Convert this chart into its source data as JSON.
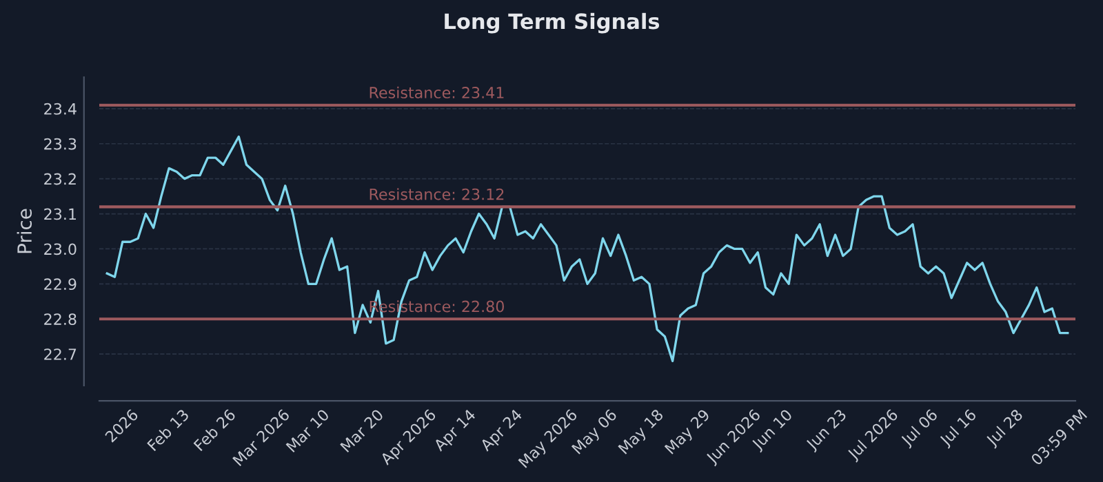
{
  "chart_data": {
    "type": "line",
    "title": "Long Term Signals",
    "ylabel": "Price",
    "categories": [
      null,
      null,
      "2026",
      null,
      null,
      null,
      null,
      null,
      "Feb 13",
      null,
      null,
      null,
      null,
      null,
      "Feb 26",
      null,
      null,
      null,
      null,
      null,
      "Mar 2026",
      null,
      null,
      null,
      null,
      null,
      "Mar 10",
      null,
      null,
      null,
      null,
      null,
      null,
      "Mar 20",
      null,
      null,
      null,
      null,
      null,
      "Apr 2026",
      null,
      null,
      null,
      null,
      null,
      "Apr 14",
      null,
      null,
      null,
      null,
      null,
      "Apr 24",
      null,
      null,
      null,
      null,
      null,
      "May 2026",
      null,
      null,
      null,
      null,
      null,
      "May 06",
      null,
      null,
      null,
      null,
      null,
      "May 18",
      null,
      null,
      null,
      null,
      null,
      "May 29",
      null,
      null,
      null,
      null,
      null,
      "Jun 2026",
      null,
      null,
      null,
      null,
      "Jun 10",
      null,
      null,
      null,
      null,
      null,
      null,
      "Jun 23",
      null,
      null,
      null,
      null,
      null,
      "Jul 2026",
      null,
      null,
      null,
      null,
      null,
      "Jul 06",
      null,
      null,
      null,
      null,
      "Jul 16",
      null,
      null,
      null,
      null,
      null,
      "Jul 28",
      null,
      null,
      null,
      null,
      null,
      null,
      "03:59 PM",
      null
    ],
    "series": [
      {
        "color": "#7fd6ec",
        "values": [
          22.93,
          22.92,
          23.02,
          23.02,
          23.03,
          23.1,
          23.06,
          23.15,
          23.23,
          23.22,
          23.2,
          23.21,
          23.21,
          23.26,
          23.26,
          23.24,
          23.28,
          23.32,
          23.24,
          23.22,
          23.2,
          23.14,
          23.11,
          23.18,
          23.1,
          22.99,
          22.9,
          22.9,
          22.97,
          23.03,
          22.94,
          22.95,
          22.76,
          22.84,
          22.79,
          22.88,
          22.73,
          22.74,
          22.85,
          22.91,
          22.92,
          22.99,
          22.94,
          22.98,
          23.01,
          23.03,
          22.99,
          23.05,
          23.1,
          23.07,
          23.03,
          23.12,
          23.12,
          23.04,
          23.05,
          23.03,
          23.07,
          23.04,
          23.01,
          22.91,
          22.95,
          22.97,
          22.9,
          22.93,
          23.03,
          22.98,
          23.04,
          22.98,
          22.91,
          22.92,
          22.9,
          22.77,
          22.75,
          22.68,
          22.81,
          22.83,
          22.84,
          22.93,
          22.95,
          22.99,
          23.01,
          23.0,
          23.0,
          22.96,
          22.99,
          22.89,
          22.87,
          22.93,
          22.9,
          23.04,
          23.01,
          23.03,
          23.07,
          22.98,
          23.04,
          22.98,
          23.0,
          23.12,
          23.14,
          23.15,
          23.15,
          23.06,
          23.04,
          23.05,
          23.07,
          22.95,
          22.93,
          22.95,
          22.93,
          22.86,
          22.91,
          22.96,
          22.94,
          22.96,
          22.9,
          22.85,
          22.82,
          22.76,
          22.8,
          22.84,
          22.89,
          22.82,
          22.83,
          22.76,
          22.76
        ]
      }
    ],
    "ylim": [
      22.61,
      23.49
    ],
    "yticks": [
      22.7,
      22.8,
      22.9,
      {
        "value": 23,
        "label": "23.0"
      },
      23.1,
      23.2,
      23.3,
      23.4
    ],
    "grid": "y",
    "ref_lines": [
      {
        "axis": "y",
        "value": 23.41,
        "label": "Resistance: 23.41",
        "color": "#9e5a5e"
      },
      {
        "axis": "y",
        "value": 23.12,
        "label": "Resistance: 23.12",
        "color": "#9e5a5e"
      },
      {
        "axis": "y",
        "value": 22.8,
        "label": "Resistance: 22.80",
        "color": "#9e5a5e"
      }
    ]
  }
}
